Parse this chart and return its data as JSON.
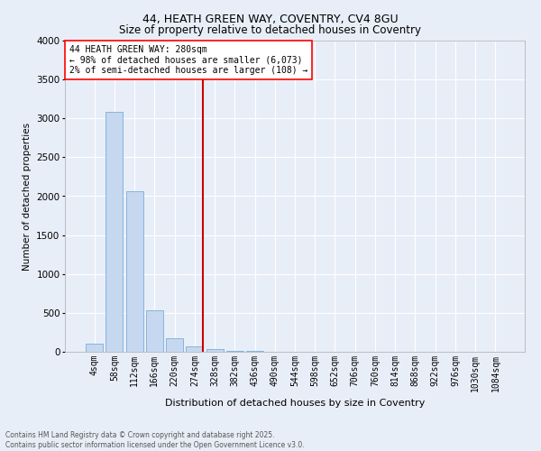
{
  "title": "44, HEATH GREEN WAY, COVENTRY, CV4 8GU",
  "subtitle": "Size of property relative to detached houses in Coventry",
  "xlabel": "Distribution of detached houses by size in Coventry",
  "ylabel": "Number of detached properties",
  "bin_labels": [
    "4sqm",
    "58sqm",
    "112sqm",
    "166sqm",
    "220sqm",
    "274sqm",
    "328sqm",
    "382sqm",
    "436sqm",
    "490sqm",
    "544sqm",
    "598sqm",
    "652sqm",
    "706sqm",
    "760sqm",
    "814sqm",
    "868sqm",
    "922sqm",
    "976sqm",
    "1030sqm",
    "1084sqm"
  ],
  "bar_values": [
    100,
    3080,
    2060,
    530,
    175,
    65,
    30,
    12,
    8,
    3,
    0,
    0,
    0,
    0,
    0,
    0,
    0,
    0,
    0,
    0,
    0
  ],
  "bar_color": "#c5d8f0",
  "bar_edge_color": "#7badd4",
  "vline_color": "#cc0000",
  "ylim": [
    0,
    4000
  ],
  "yticks": [
    0,
    500,
    1000,
    1500,
    2000,
    2500,
    3000,
    3500,
    4000
  ],
  "property_label": "44 HEATH GREEN WAY: 280sqm",
  "annotation_line1": "← 98% of detached houses are smaller (6,073)",
  "annotation_line2": "2% of semi-detached houses are larger (108) →",
  "footer_line1": "Contains HM Land Registry data © Crown copyright and database right 2025.",
  "footer_line2": "Contains public sector information licensed under the Open Government Licence v3.0.",
  "bg_color": "#e8eef8",
  "grid_color": "#ffffff",
  "title_fontsize": 9,
  "subtitle_fontsize": 8.5,
  "ylabel_fontsize": 7.5,
  "xlabel_fontsize": 8,
  "tick_fontsize": 7,
  "annot_fontsize": 7,
  "footer_fontsize": 5.5
}
